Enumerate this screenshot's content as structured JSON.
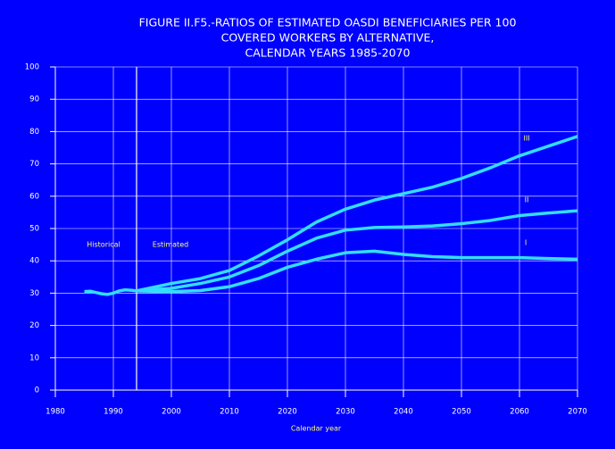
{
  "chart_data": {
    "type": "line",
    "title": [
      "FIGURE II.F5.-RATIOS    OF  ESTIMATED  OASDI  BENEFICIARIES PER 100",
      "COVERED WORKERS BY ALTERNATIVE,",
      "CALENDAR YEARS 1985-2070"
    ],
    "x_label": "Calendar year",
    "xlim": [
      1980,
      2070
    ],
    "xticks": [
      1980,
      1990,
      2000,
      2010,
      2020,
      2030,
      2040,
      2050,
      2060,
      2070
    ],
    "ylim": [
      0,
      100
    ],
    "yticks": [
      0,
      10,
      20,
      30,
      40,
      50,
      60,
      70,
      80,
      90,
      100
    ],
    "grid": true,
    "divider_x": 1994,
    "annotations": [
      "Historical",
      "Estimated"
    ],
    "series": [
      {
        "color": "#33ddff",
        "x": [
          1985,
          1986,
          1987,
          1988,
          1989,
          1990,
          1991,
          1992,
          1993,
          1994
        ],
        "values": [
          30.5,
          30.6,
          30.2,
          29.8,
          29.6,
          30.0,
          30.7,
          31.0,
          30.9,
          30.7
        ]
      },
      {
        "name": "III",
        "color": "#33ddff",
        "x": [
          1994,
          2000,
          2005,
          2010,
          2015,
          2020,
          2025,
          2030,
          2035,
          2040,
          2045,
          2050,
          2055,
          2060,
          2065,
          2070
        ],
        "values": [
          30.7,
          33,
          34.5,
          37,
          41.5,
          46.5,
          52,
          56,
          58.8,
          60.8,
          62.8,
          65.5,
          68.8,
          72.5,
          75.5,
          78.5
        ]
      },
      {
        "name": "II",
        "color": "#33ddff",
        "x": [
          1994,
          2000,
          2005,
          2010,
          2015,
          2020,
          2025,
          2030,
          2035,
          2040,
          2045,
          2050,
          2055,
          2060,
          2065,
          2070
        ],
        "values": [
          30.7,
          31.5,
          33,
          35,
          38.5,
          43,
          47,
          49.5,
          50.3,
          50.5,
          50.8,
          51.5,
          52.5,
          54,
          54.8,
          55.5
        ]
      },
      {
        "name": "I",
        "color": "#33ddff",
        "x": [
          1994,
          2000,
          2005,
          2010,
          2015,
          2020,
          2025,
          2030,
          2035,
          2040,
          2045,
          2050,
          2055,
          2060,
          2065,
          2070
        ],
        "values": [
          30.7,
          30.5,
          30.8,
          32,
          34.5,
          38,
          40.5,
          42.5,
          43,
          42,
          41.3,
          41,
          41,
          41,
          40.7,
          40.5
        ]
      }
    ]
  }
}
